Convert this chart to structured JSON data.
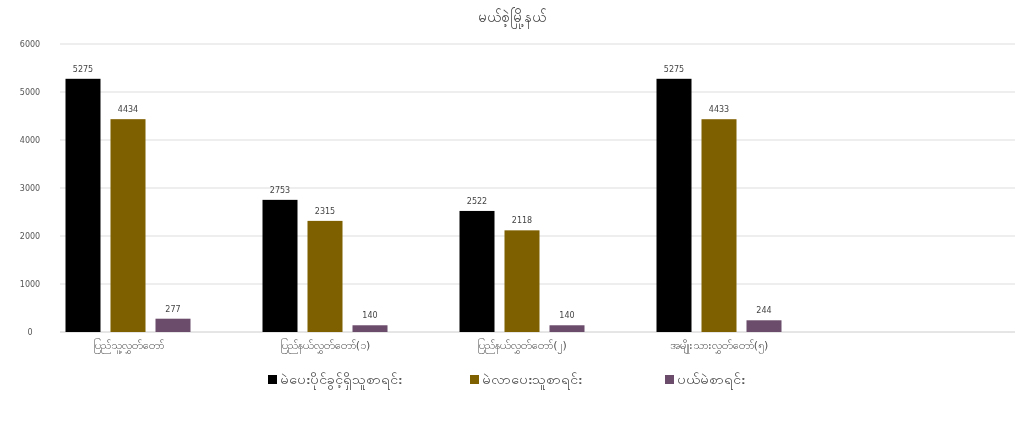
{
  "chart_data": {
    "type": "bar",
    "title": "မယ်စဲ့မြို့နယ်",
    "categories": [
      "ပြည်သူ့လွှတ်တော်",
      "ပြည်နယ်လွှတ်တော်(၁)",
      "ပြည်နယ်လွှတ်တော်(၂)",
      "အမျိုးသားလွှတ်တော်(၅)"
    ],
    "series": [
      {
        "name": "မဲပေးပိုင်ခွင့်ရှိသူစာရင်း",
        "color": "#000000",
        "values": [
          5275,
          2753,
          2522,
          5275
        ]
      },
      {
        "name": "မဲလာပေးသူစာရင်း",
        "color": "#7f6000",
        "values": [
          4434,
          2315,
          2118,
          4433
        ]
      },
      {
        "name": "ပယ်မဲစာရင်း",
        "color": "#6b4c6b",
        "values": [
          277,
          140,
          140,
          244
        ]
      }
    ],
    "ylim": [
      0,
      6000
    ],
    "yticks": [
      0,
      1000,
      2000,
      3000,
      4000,
      5000,
      6000
    ],
    "grid": "y",
    "legend": "bottom",
    "data_labels": true
  }
}
